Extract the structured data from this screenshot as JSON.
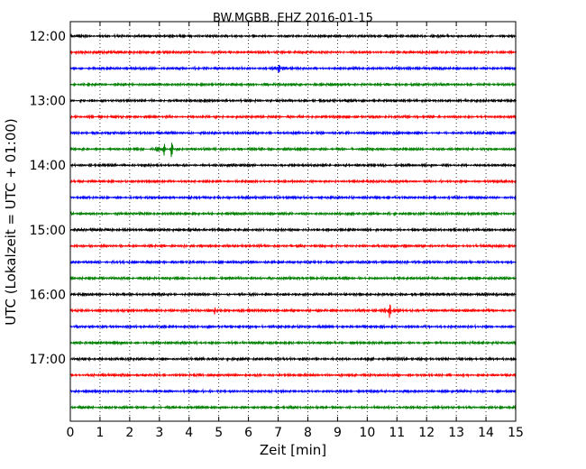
{
  "chart_data": {
    "type": "line",
    "title": "BW.MGBB..EHZ 2016-01-15",
    "xlabel": "Zeit  [min]",
    "ylabel": "UTC (Lokalzeit = UTC + 01:00)",
    "xlim": [
      0,
      15
    ],
    "x_ticks": [
      "0",
      "1",
      "2",
      "3",
      "4",
      "5",
      "6",
      "7",
      "8",
      "9",
      "10",
      "11",
      "12",
      "13",
      "14",
      "15"
    ],
    "y_ticks": [
      "12:00",
      "13:00",
      "14:00",
      "15:00",
      "16:00",
      "17:00"
    ],
    "grid": "vertical dotted",
    "colors": [
      "#000000",
      "#ff0000",
      "#0000ff",
      "#008000"
    ],
    "traces": [
      {
        "start": "12:00",
        "color": "#000000"
      },
      {
        "start": "12:15",
        "color": "#ff0000"
      },
      {
        "start": "12:30",
        "color": "#0000ff"
      },
      {
        "start": "12:45",
        "color": "#008000"
      },
      {
        "start": "13:00",
        "color": "#000000"
      },
      {
        "start": "13:15",
        "color": "#ff0000"
      },
      {
        "start": "13:30",
        "color": "#0000ff"
      },
      {
        "start": "13:45",
        "color": "#008000"
      },
      {
        "start": "14:00",
        "color": "#000000"
      },
      {
        "start": "14:15",
        "color": "#ff0000"
      },
      {
        "start": "14:30",
        "color": "#0000ff"
      },
      {
        "start": "14:45",
        "color": "#008000"
      },
      {
        "start": "15:00",
        "color": "#000000"
      },
      {
        "start": "15:15",
        "color": "#ff0000"
      },
      {
        "start": "15:30",
        "color": "#0000ff"
      },
      {
        "start": "15:45",
        "color": "#008000"
      },
      {
        "start": "16:00",
        "color": "#000000"
      },
      {
        "start": "16:15",
        "color": "#ff0000"
      },
      {
        "start": "16:30",
        "color": "#0000ff"
      },
      {
        "start": "16:45",
        "color": "#008000"
      },
      {
        "start": "17:00",
        "color": "#000000"
      },
      {
        "start": "17:15",
        "color": "#ff0000"
      },
      {
        "start": "17:30",
        "color": "#0000ff"
      },
      {
        "start": "17:45",
        "color": "#008000"
      }
    ],
    "events": [
      {
        "trace": "13:45",
        "minute": 3.15
      },
      {
        "trace": "13:45",
        "minute": 3.4
      },
      {
        "trace": "16:15",
        "minute": 4.9
      },
      {
        "trace": "16:15",
        "minute": 10.75
      },
      {
        "trace": "12:30",
        "minute": 7.0
      }
    ]
  }
}
